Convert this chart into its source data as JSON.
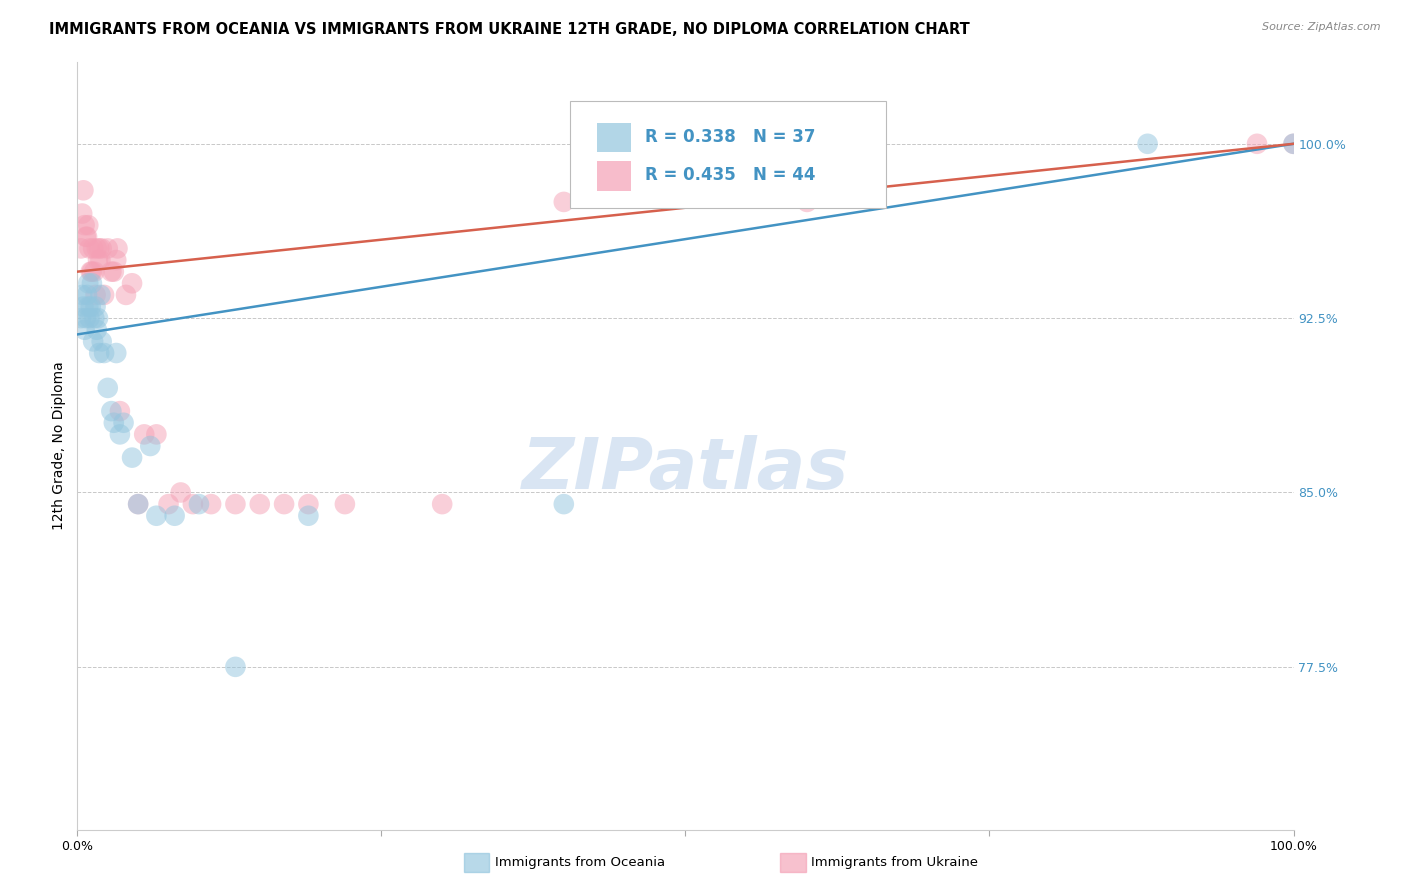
{
  "title": "IMMIGRANTS FROM OCEANIA VS IMMIGRANTS FROM UKRAINE 12TH GRADE, NO DIPLOMA CORRELATION CHART",
  "source": "Source: ZipAtlas.com",
  "ylabel": "12th Grade, No Diploma",
  "y_tick_labels": [
    "77.5%",
    "85.0%",
    "92.5%",
    "100.0%"
  ],
  "y_tick_values": [
    0.775,
    0.85,
    0.925,
    1.0
  ],
  "x_min": 0.0,
  "x_max": 1.0,
  "y_min": 0.705,
  "y_max": 1.035,
  "legend_blue_text": "R = 0.338   N = 37",
  "legend_pink_text": "R = 0.435   N = 44",
  "blue_label": "Immigrants from Oceania",
  "pink_label": "Immigrants from Ukraine",
  "blue_color": "#92c5de",
  "pink_color": "#f4a0b5",
  "blue_line_color": "#4393c3",
  "pink_line_color": "#d6604d",
  "legend_text_color": "#4393c3",
  "watermark_text": "ZIPatlas",
  "blue_points_x": [
    0.003,
    0.004,
    0.005,
    0.006,
    0.007,
    0.008,
    0.009,
    0.009,
    0.01,
    0.011,
    0.012,
    0.013,
    0.014,
    0.015,
    0.016,
    0.017,
    0.018,
    0.019,
    0.02,
    0.022,
    0.025,
    0.028,
    0.03,
    0.032,
    0.035,
    0.038,
    0.045,
    0.05,
    0.06,
    0.065,
    0.08,
    0.1,
    0.13,
    0.19,
    0.4,
    0.88,
    1.0
  ],
  "blue_points_y": [
    0.925,
    0.935,
    0.93,
    0.92,
    0.925,
    0.935,
    0.93,
    0.94,
    0.925,
    0.93,
    0.94,
    0.915,
    0.925,
    0.93,
    0.92,
    0.925,
    0.91,
    0.935,
    0.915,
    0.91,
    0.895,
    0.885,
    0.88,
    0.91,
    0.875,
    0.88,
    0.865,
    0.845,
    0.87,
    0.84,
    0.84,
    0.845,
    0.775,
    0.84,
    0.845,
    1.0,
    1.0
  ],
  "pink_points_x": [
    0.003,
    0.004,
    0.005,
    0.006,
    0.007,
    0.008,
    0.009,
    0.01,
    0.011,
    0.012,
    0.013,
    0.014,
    0.015,
    0.016,
    0.017,
    0.018,
    0.019,
    0.02,
    0.022,
    0.025,
    0.028,
    0.03,
    0.032,
    0.033,
    0.035,
    0.04,
    0.045,
    0.05,
    0.055,
    0.065,
    0.075,
    0.085,
    0.095,
    0.11,
    0.13,
    0.15,
    0.17,
    0.19,
    0.22,
    0.3,
    0.4,
    0.6,
    0.97,
    1.0
  ],
  "pink_points_y": [
    0.955,
    0.97,
    0.98,
    0.965,
    0.96,
    0.96,
    0.965,
    0.955,
    0.945,
    0.945,
    0.955,
    0.945,
    0.935,
    0.955,
    0.95,
    0.955,
    0.95,
    0.955,
    0.935,
    0.955,
    0.945,
    0.945,
    0.95,
    0.955,
    0.885,
    0.935,
    0.94,
    0.845,
    0.875,
    0.875,
    0.845,
    0.85,
    0.845,
    0.845,
    0.845,
    0.845,
    0.845,
    0.845,
    0.845,
    0.845,
    0.975,
    0.975,
    1.0,
    1.0
  ],
  "blue_intercept": 0.918,
  "blue_slope": 0.082,
  "pink_intercept": 0.945,
  "pink_slope": 0.055,
  "grid_color": "#c8c8c8",
  "background_color": "#ffffff",
  "title_fontsize": 10.5,
  "axis_label_fontsize": 10,
  "tick_fontsize": 9,
  "legend_fontsize": 12,
  "watermark_fontsize": 52,
  "source_fontsize": 8
}
